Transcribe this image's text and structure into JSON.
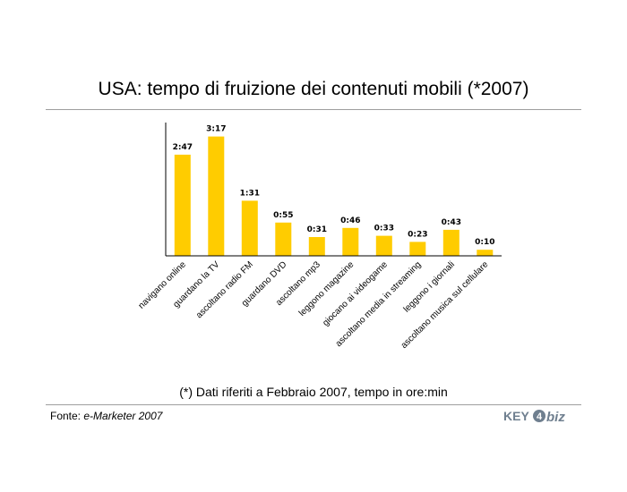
{
  "header": {
    "title": "USA: tempo di fruizione dei contenuti mobili (*2007)"
  },
  "footer": {
    "note": "(*) Dati riferiti a Febbraio 2007, tempo in ore:min",
    "source_label": "Fonte:",
    "source_name": "e-Marketer 2007",
    "logo_text_key": "KEY",
    "logo_text_4": "4",
    "logo_text_biz": "biz"
  },
  "colors": {
    "bar": "#FFCC00",
    "axis": "#000000",
    "rule": "#9e9e9e",
    "logo": "#6f7f8f"
  },
  "chart_data": {
    "type": "bar",
    "categories": [
      "navigano online",
      "guardano la TV",
      "ascoltano radio FM",
      "guardano DVD",
      "ascoltano mp3",
      "leggono magazine",
      "giocano ai videogame",
      "ascoltano media in streaming",
      "leggono i giornali",
      "ascoltano musica sul cellulare"
    ],
    "values": [
      167,
      197,
      91,
      55,
      31,
      46,
      33,
      23,
      43,
      10
    ],
    "data_labels": [
      "2:47",
      "3:17",
      "1:31",
      "0:55",
      "0:31",
      "0:46",
      "0:33",
      "0:23",
      "0:43",
      "0:10"
    ],
    "title": "",
    "xlabel": "",
    "ylabel": "",
    "ylim": [
      0,
      220
    ],
    "grid": false,
    "legend": "none"
  }
}
